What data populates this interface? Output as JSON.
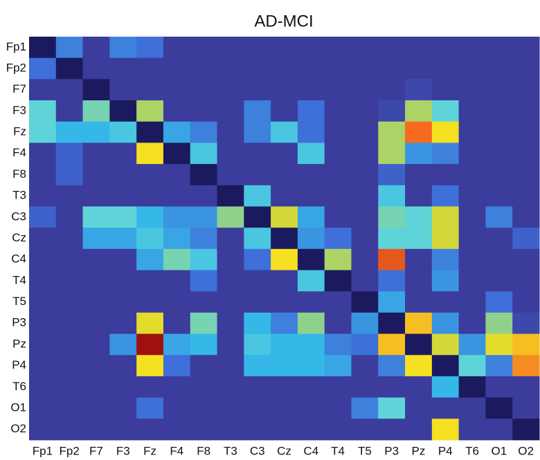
{
  "chart_data": {
    "type": "heatmap",
    "title": "AD-MCI",
    "x": [
      "Fp1",
      "Fp2",
      "F7",
      "F3",
      "Fz",
      "F4",
      "F8",
      "T3",
      "C3",
      "Cz",
      "C4",
      "T4",
      "T5",
      "P3",
      "Pz",
      "P4",
      "T6",
      "O1",
      "O2"
    ],
    "y": [
      "Fp1",
      "Fp2",
      "F7",
      "F3",
      "Fz",
      "F4",
      "F8",
      "T3",
      "C3",
      "Cz",
      "C4",
      "T4",
      "T5",
      "P3",
      "Pz",
      "P4",
      "T6",
      "O1",
      "O2"
    ],
    "zlim": [
      0,
      1
    ],
    "colormap": [
      [
        0,
        "#1c1a5e"
      ],
      [
        0.1,
        "#3b3c9c"
      ],
      [
        0.3,
        "#3f6fd8"
      ],
      [
        0.5,
        "#35b8e8"
      ],
      [
        0.6,
        "#5fd4d8"
      ],
      [
        0.7,
        "#8fd18a"
      ],
      [
        0.8,
        "#c8d440"
      ],
      [
        0.88,
        "#f5e022"
      ],
      [
        0.95,
        "#f56a20"
      ],
      [
        1,
        "#a01010"
      ]
    ],
    "z": [
      [
        0,
        0.35,
        0.1,
        0.35,
        0.3,
        0.1,
        0.1,
        0.1,
        0.1,
        0.1,
        0.1,
        0.1,
        0.1,
        0.1,
        0.1,
        0.1,
        0.1,
        0.1,
        0.1
      ],
      [
        0.3,
        0,
        0.1,
        0.1,
        0.1,
        0.1,
        0.1,
        0.1,
        0.1,
        0.1,
        0.1,
        0.1,
        0.1,
        0.1,
        0.1,
        0.1,
        0.1,
        0.1,
        0.1
      ],
      [
        0.1,
        0.1,
        0,
        0.1,
        0.1,
        0.1,
        0.1,
        0.1,
        0.1,
        0.1,
        0.1,
        0.1,
        0.1,
        0.1,
        0.15,
        0.1,
        0.1,
        0.1,
        0.1
      ],
      [
        0.6,
        0.1,
        0.65,
        0,
        0.75,
        0.1,
        0.1,
        0.1,
        0.35,
        0.1,
        0.3,
        0.1,
        0.1,
        0.15,
        0.75,
        0.6,
        0.1,
        0.1,
        0.1
      ],
      [
        0.6,
        0.5,
        0.5,
        0.55,
        0,
        0.45,
        0.35,
        0.1,
        0.35,
        0.55,
        0.3,
        0.1,
        0.1,
        0.75,
        0.95,
        0.88,
        0.1,
        0.1,
        0.1
      ],
      [
        0.1,
        0.25,
        0.1,
        0.1,
        0.88,
        0,
        0.55,
        0.1,
        0.1,
        0.1,
        0.55,
        0.1,
        0.1,
        0.75,
        0.4,
        0.35,
        0.1,
        0.1,
        0.1
      ],
      [
        0.1,
        0.25,
        0.1,
        0.1,
        0.1,
        0.1,
        0,
        0.1,
        0.1,
        0.1,
        0.1,
        0.1,
        0.1,
        0.25,
        0.1,
        0.1,
        0.1,
        0.1,
        0.1
      ],
      [
        0.1,
        0.1,
        0.1,
        0.1,
        0.1,
        0.1,
        0.1,
        0,
        0.55,
        0.1,
        0.1,
        0.1,
        0.1,
        0.55,
        0.1,
        0.3,
        0.1,
        0.1,
        0.1
      ],
      [
        0.25,
        0.1,
        0.6,
        0.6,
        0.5,
        0.4,
        0.4,
        0.7,
        0,
        0.82,
        0.45,
        0.1,
        0.1,
        0.65,
        0.6,
        0.82,
        0.1,
        0.35,
        0.1
      ],
      [
        0.1,
        0.1,
        0.45,
        0.45,
        0.55,
        0.45,
        0.35,
        0.1,
        0.55,
        0,
        0.4,
        0.3,
        0.1,
        0.6,
        0.6,
        0.82,
        0.1,
        0.1,
        0.25
      ],
      [
        0.1,
        0.1,
        0.1,
        0.1,
        0.45,
        0.65,
        0.55,
        0.1,
        0.3,
        0.88,
        0,
        0.75,
        0.1,
        0.96,
        0.1,
        0.35,
        0.1,
        0.1,
        0.1
      ],
      [
        0.1,
        0.1,
        0.1,
        0.1,
        0.1,
        0.1,
        0.3,
        0.1,
        0.1,
        0.1,
        0.55,
        0,
        0.1,
        0.3,
        0.1,
        0.4,
        0.1,
        0.1,
        0.1
      ],
      [
        0.1,
        0.1,
        0.1,
        0.1,
        0.1,
        0.1,
        0.1,
        0.1,
        0.1,
        0.1,
        0.1,
        0.1,
        0,
        0.45,
        0.1,
        0.1,
        0.1,
        0.3,
        0.1
      ],
      [
        0.1,
        0.1,
        0.1,
        0.1,
        0.85,
        0.1,
        0.65,
        0.1,
        0.5,
        0.35,
        0.7,
        0.1,
        0.4,
        0,
        0.9,
        0.4,
        0.1,
        0.7,
        0.15
      ],
      [
        0.1,
        0.1,
        0.1,
        0.4,
        1,
        0.45,
        0.5,
        0.1,
        0.55,
        0.5,
        0.5,
        0.35,
        0.3,
        0.9,
        0,
        0.82,
        0.4,
        0.85,
        0.9
      ],
      [
        0.1,
        0.1,
        0.1,
        0.1,
        0.88,
        0.3,
        0.1,
        0.1,
        0.5,
        0.5,
        0.5,
        0.45,
        0.1,
        0.35,
        0.88,
        0,
        0.6,
        0.35,
        0.93
      ],
      [
        0.1,
        0.1,
        0.1,
        0.1,
        0.1,
        0.1,
        0.1,
        0.1,
        0.1,
        0.1,
        0.1,
        0.1,
        0.1,
        0.1,
        0.1,
        0.5,
        0,
        0.1,
        0.1
      ],
      [
        0.1,
        0.1,
        0.1,
        0.1,
        0.3,
        0.1,
        0.1,
        0.1,
        0.1,
        0.1,
        0.1,
        0.1,
        0.35,
        0.6,
        0.1,
        0.1,
        0.1,
        0,
        0.1
      ],
      [
        0.1,
        0.1,
        0.1,
        0.1,
        0.1,
        0.1,
        0.1,
        0.1,
        0.1,
        0.1,
        0.1,
        0.1,
        0.1,
        0.1,
        0.1,
        0.88,
        0.1,
        0.1,
        0
      ]
    ]
  }
}
